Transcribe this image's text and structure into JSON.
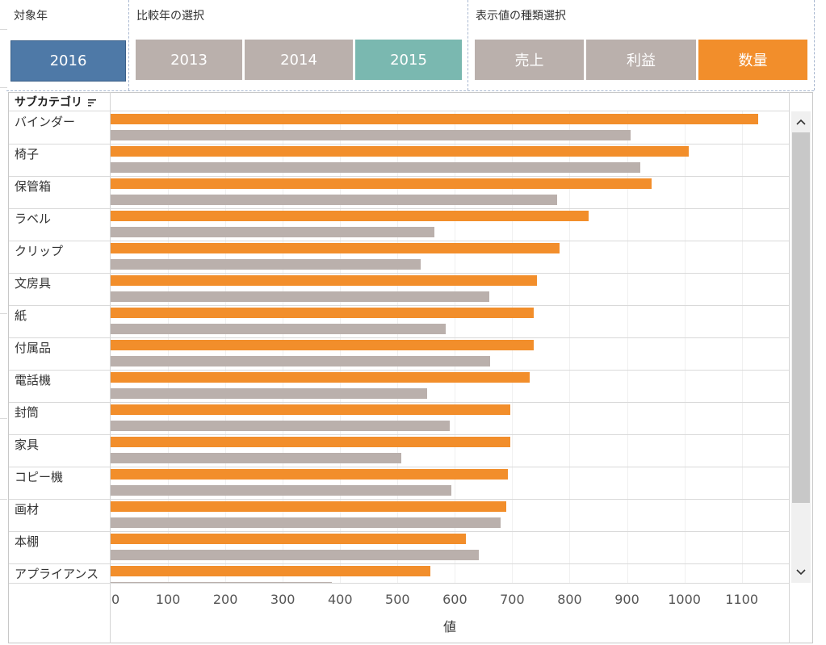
{
  "filters": {
    "target_year": {
      "title": "対象年",
      "buttons": [
        {
          "label": "2016",
          "state": "selected"
        }
      ]
    },
    "compare_year": {
      "title": "比較年の選択",
      "buttons": [
        {
          "label": "2013",
          "state": "inactive"
        },
        {
          "label": "2014",
          "state": "inactive"
        },
        {
          "label": "2015",
          "state": "selected"
        }
      ]
    },
    "value_type": {
      "title": "表示値の種類選択",
      "buttons": [
        {
          "label": "売上",
          "state": "inactive"
        },
        {
          "label": "利益",
          "state": "inactive"
        },
        {
          "label": "数量",
          "state": "selected"
        }
      ]
    }
  },
  "chart_header": {
    "row_label": "サブカテゴリ"
  },
  "colors": {
    "current": "#f28e2b",
    "comparison": "#bab0ac",
    "target_button": "#4e79a7",
    "compare_button": "#7ab8b0"
  },
  "chart_data": {
    "type": "bar",
    "orientation": "horizontal",
    "xlabel": "値",
    "ylabel": "サブカテゴリ",
    "xlim": [
      0,
      1180
    ],
    "ticks": [
      "0",
      "100",
      "200",
      "300",
      "400",
      "500",
      "600",
      "700",
      "800",
      "900",
      "1000",
      "1100"
    ],
    "categories": [
      "バインダー",
      "椅子",
      "保管箱",
      "ラベル",
      "クリップ",
      "文房具",
      "紙",
      "付属品",
      "電話機",
      "封筒",
      "家具",
      "コピー機",
      "画材",
      "本棚",
      "アプライアンス"
    ],
    "series": [
      {
        "name": "2016",
        "values": [
          1128,
          1008,
          943,
          833,
          782,
          743,
          737,
          737,
          731,
          696,
          696,
          692,
          689,
          619,
          557
        ]
      },
      {
        "name": "2015",
        "values": [
          906,
          923,
          778,
          564,
          540,
          660,
          584,
          661,
          551,
          591,
          506,
          594,
          680,
          642,
          385
        ]
      }
    ]
  }
}
